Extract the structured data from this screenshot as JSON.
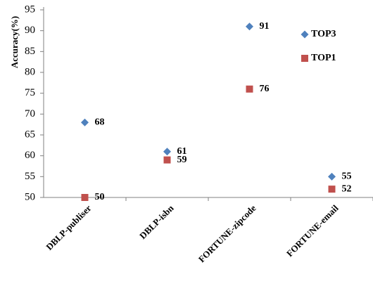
{
  "chart_data": {
    "type": "scatter",
    "categories": [
      "DBLP-publiser",
      "DBLP-isbn",
      "FORTUNE-zipcode",
      "FORTUNE-email"
    ],
    "ylabel": "Accuracy(%)",
    "ylim": [
      50,
      95
    ],
    "yticks": [
      50,
      55,
      60,
      65,
      70,
      75,
      80,
      85,
      90,
      95
    ],
    "legend_position": "top-right",
    "series": [
      {
        "name": "TOP3",
        "marker": "diamond",
        "color": "#4f81bd",
        "values": [
          68,
          61,
          91,
          55
        ]
      },
      {
        "name": "TOP1",
        "marker": "square",
        "color": "#c0504d",
        "values": [
          50,
          59,
          76,
          52
        ]
      }
    ]
  }
}
